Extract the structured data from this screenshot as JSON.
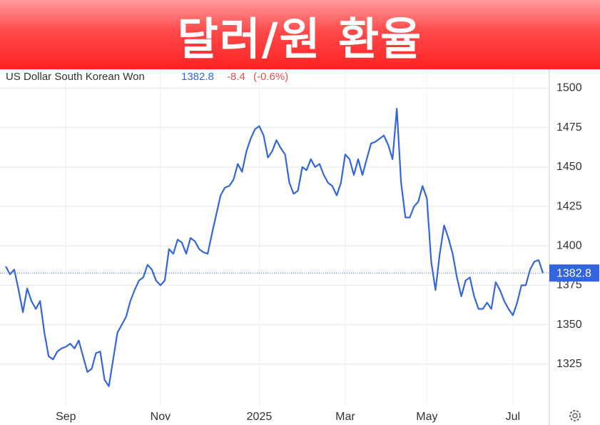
{
  "chart_data": {
    "type": "line",
    "title": "달러/원 환율",
    "series_label": "US Dollar South Korean Won",
    "last_price": 1382.8,
    "change": -8.4,
    "change_percent_label": "(-0.6%)",
    "series": [
      {
        "name": "US Dollar South Korean Won",
        "color": "#3366dd",
        "values": [
          1387,
          1382,
          1385,
          1372,
          1358,
          1373,
          1365,
          1360,
          1365,
          1345,
          1330,
          1328,
          1333,
          1335,
          1336,
          1338,
          1335,
          1340,
          1330,
          1320,
          1322,
          1332,
          1333,
          1315,
          1311,
          1328,
          1345,
          1350,
          1355,
          1365,
          1372,
          1378,
          1380,
          1388,
          1385,
          1378,
          1375,
          1378,
          1398,
          1395,
          1404,
          1402,
          1395,
          1405,
          1403,
          1398,
          1396,
          1395,
          1408,
          1420,
          1432,
          1437,
          1438,
          1442,
          1452,
          1447,
          1460,
          1468,
          1474,
          1476,
          1470,
          1456,
          1460,
          1467,
          1462,
          1458,
          1440,
          1433,
          1435,
          1450,
          1448,
          1455,
          1450,
          1452,
          1445,
          1440,
          1438,
          1432,
          1440,
          1458,
          1455,
          1445,
          1455,
          1445,
          1455,
          1465,
          1466,
          1468,
          1470,
          1464,
          1455,
          1487,
          1440,
          1418,
          1418,
          1425,
          1428,
          1438,
          1430,
          1390,
          1372,
          1395,
          1413,
          1405,
          1395,
          1380,
          1368,
          1378,
          1380,
          1368,
          1360,
          1360,
          1364,
          1360,
          1377,
          1372,
          1365,
          1360,
          1356,
          1364,
          1375,
          1375,
          1385,
          1390,
          1391,
          1382.8
        ]
      }
    ],
    "xlim": [
      0,
      124
    ],
    "xticks": [
      {
        "value": 14,
        "label": "Sep"
      },
      {
        "value": 36,
        "label": "Nov"
      },
      {
        "value": 59,
        "label": "2025"
      },
      {
        "value": 79,
        "label": "Mar"
      },
      {
        "value": 98,
        "label": "May"
      },
      {
        "value": 118,
        "label": "Jul"
      }
    ],
    "ylim": [
      1300,
      1512
    ],
    "yticks": [
      1325,
      1350,
      1375,
      1400,
      1425,
      1450,
      1475,
      1500
    ],
    "grid": true
  }
}
